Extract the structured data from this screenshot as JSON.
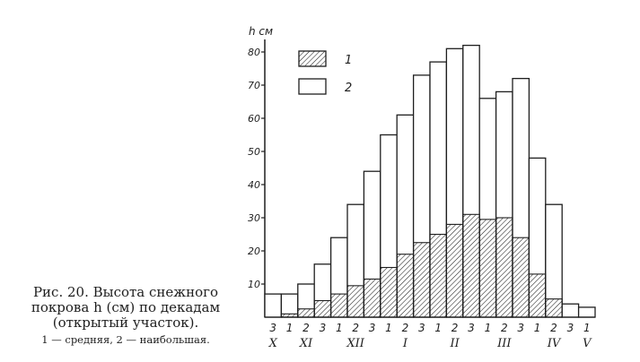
{
  "chart_data": {
    "type": "bar",
    "y_unit_label": "h см",
    "ylim": [
      0,
      82
    ],
    "yticks": [
      10,
      20,
      30,
      40,
      50,
      60,
      70,
      80
    ],
    "grid": false,
    "legend_position": "top-left",
    "decades": [
      "3",
      "1",
      "2",
      "3",
      "1",
      "2",
      "3",
      "1",
      "2",
      "3",
      "1",
      "2",
      "3",
      "1",
      "2",
      "3",
      "1",
      "2",
      "3",
      "1"
    ],
    "months": [
      {
        "label": "X",
        "start": 0,
        "end": 0
      },
      {
        "label": "XI",
        "start": 1,
        "end": 3
      },
      {
        "label": "XII",
        "start": 4,
        "end": 6
      },
      {
        "label": "I",
        "start": 7,
        "end": 9
      },
      {
        "label": "II",
        "start": 10,
        "end": 12
      },
      {
        "label": "III",
        "start": 13,
        "end": 15
      },
      {
        "label": "IV",
        "start": 16,
        "end": 18
      },
      {
        "label": "V",
        "start": 19,
        "end": 19
      }
    ],
    "series": [
      {
        "name": "1",
        "pattern": "hatched",
        "values": [
          0,
          1,
          2.5,
          5,
          7,
          9.5,
          11.5,
          15,
          19,
          22.5,
          25,
          28,
          31,
          29.5,
          30,
          24,
          13,
          5.5,
          0,
          0
        ]
      },
      {
        "name": "2",
        "pattern": "open",
        "values": [
          7,
          7,
          10,
          16,
          24,
          34,
          44,
          55,
          61,
          73,
          77,
          81,
          82,
          66,
          68,
          72,
          48,
          34,
          4,
          3
        ]
      }
    ],
    "legend": [
      {
        "label": "1",
        "pattern": "hatched"
      },
      {
        "label": "2",
        "pattern": "open"
      }
    ]
  },
  "caption": {
    "line1": "Рис. 20. Высота снежного",
    "line2": "покрова h (см) по декадам",
    "line3": "(открытый участок).",
    "legend_line": "1 — средняя, 2 — наибольшая."
  },
  "colors": {
    "ink": "#1e1e1e",
    "paper": "#ffffff"
  }
}
